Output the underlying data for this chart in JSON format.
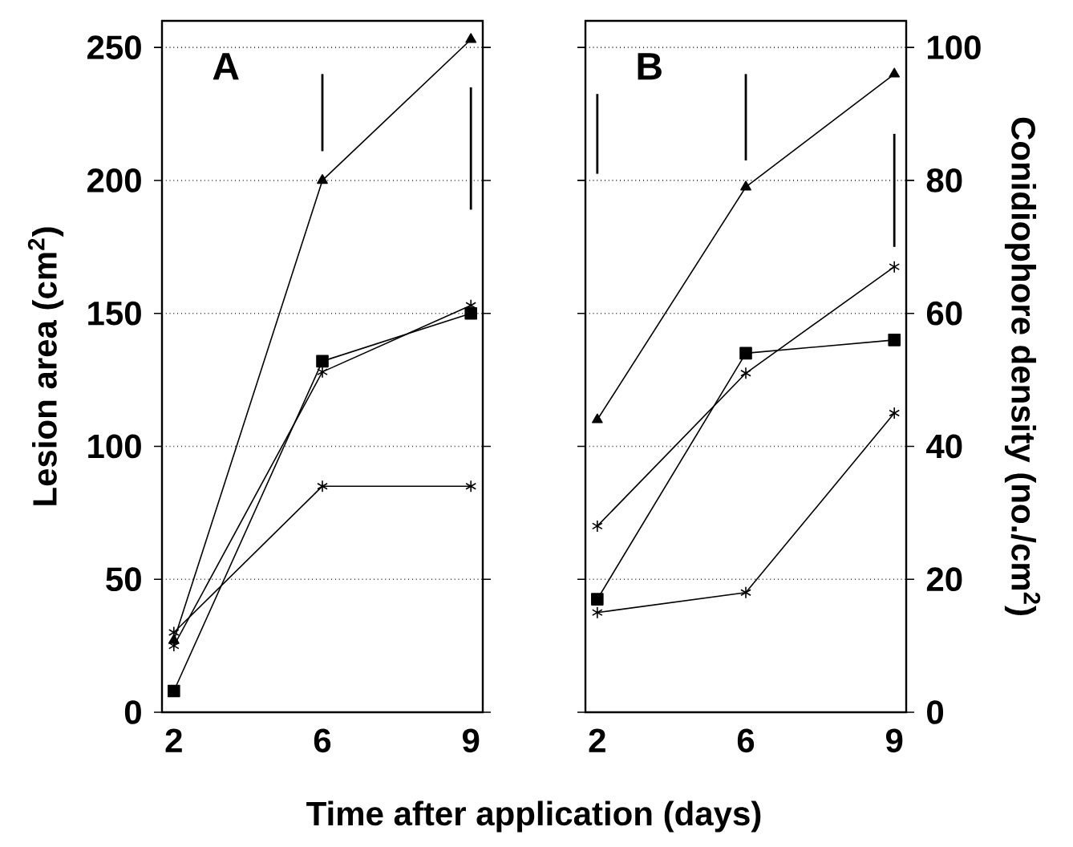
{
  "chart_data": [
    {
      "type": "line",
      "categories": [
        "2",
        "6",
        "9"
      ],
      "xlabel": "Time after application (days)",
      "ylabel": "Lesion area (cm$^{2}$)",
      "ylim": [
        0,
        260
      ],
      "yticks": [
        0,
        50,
        100,
        150,
        200,
        250
      ],
      "grid": "y",
      "annotations": [
        "A"
      ],
      "series": [
        {
          "color": "#000000",
          "marker": "triangle",
          "values": [
            27,
            200,
            253
          ]
        },
        {
          "color": "#000000",
          "marker": "square",
          "values": [
            8,
            132,
            150
          ]
        },
        {
          "color": "#000000",
          "marker": "cross",
          "values": [
            25,
            128,
            153
          ]
        },
        {
          "color": "#000000",
          "marker": "cross",
          "values": [
            30,
            85,
            85
          ]
        },
        {
          "color": "#000000",
          "marker": "none",
          "x": [
            "6",
            "6"
          ],
          "values": [
            211,
            240
          ]
        },
        {
          "color": "#000000",
          "marker": "none",
          "x": [
            "9",
            "9"
          ],
          "values": [
            189,
            235
          ]
        }
      ]
    },
    {
      "type": "line",
      "categories": [
        "2",
        "6",
        "9"
      ],
      "ylabel": "Conidiophore density (no./cm$^{2}$)",
      "ylim": [
        0,
        104
      ],
      "yticks": [
        0,
        20,
        40,
        60,
        80,
        100
      ],
      "grid": "y",
      "annotations": [
        "B"
      ],
      "series": [
        {
          "color": "#000000",
          "marker": "triangle",
          "values": [
            44,
            79,
            96
          ]
        },
        {
          "color": "#000000",
          "marker": "square",
          "values": [
            17,
            54,
            56
          ]
        },
        {
          "color": "#000000",
          "marker": "cross",
          "values": [
            28,
            51,
            67
          ]
        },
        {
          "color": "#000000",
          "marker": "cross",
          "values": [
            15,
            18,
            45
          ]
        },
        {
          "color": "#000000",
          "marker": "none",
          "x": [
            "2",
            "2"
          ],
          "values": [
            81,
            93
          ]
        },
        {
          "color": "#000000",
          "marker": "none",
          "x": [
            "6",
            "6"
          ],
          "values": [
            83,
            96
          ]
        },
        {
          "color": "#000000",
          "marker": "none",
          "x": [
            "9",
            "9"
          ],
          "values": [
            70,
            87
          ]
        }
      ]
    }
  ]
}
